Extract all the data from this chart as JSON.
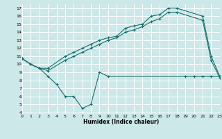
{
  "xlabel": "Humidex (Indice chaleur)",
  "bg_color": "#cce8e8",
  "grid_color": "#ffffff",
  "line_color": "#1a6e6e",
  "line1_x": [
    0,
    1,
    2,
    3,
    5,
    6,
    7,
    8,
    9,
    10,
    11,
    12,
    13,
    14,
    15,
    16,
    17,
    18,
    21,
    22,
    23
  ],
  "line1_y": [
    10.7,
    10.0,
    9.5,
    9.5,
    11.0,
    11.5,
    12.0,
    12.5,
    13.0,
    13.3,
    13.5,
    14.5,
    14.8,
    15.0,
    16.0,
    16.2,
    17.0,
    17.0,
    16.0,
    11.0,
    8.5
  ],
  "line2_x": [
    0,
    1,
    2,
    3,
    5,
    6,
    7,
    8,
    9,
    10,
    11,
    12,
    13,
    14,
    15,
    16,
    17,
    18,
    21,
    22,
    23
  ],
  "line2_y": [
    10.7,
    10.0,
    9.5,
    9.2,
    10.5,
    11.0,
    11.5,
    12.0,
    12.5,
    13.0,
    13.3,
    14.0,
    14.3,
    14.7,
    15.3,
    15.7,
    16.5,
    16.5,
    15.5,
    10.5,
    8.3
  ],
  "line3_x": [
    0,
    1,
    2,
    3,
    4,
    5,
    6,
    7,
    8,
    9,
    10,
    19,
    20,
    21,
    22,
    23
  ],
  "line3_y": [
    10.7,
    10.0,
    9.5,
    8.5,
    7.5,
    6.0,
    6.0,
    4.5,
    5.0,
    9.0,
    8.5,
    8.5,
    8.5,
    8.5,
    8.5,
    8.5
  ],
  "xlim": [
    0,
    23
  ],
  "ylim": [
    3.8,
    17.5
  ],
  "yticks": [
    4,
    5,
    6,
    7,
    8,
    9,
    10,
    11,
    12,
    13,
    14,
    15,
    16,
    17
  ],
  "xticks": [
    0,
    1,
    2,
    3,
    4,
    5,
    6,
    7,
    8,
    9,
    10,
    11,
    12,
    13,
    14,
    15,
    16,
    17,
    18,
    19,
    20,
    21,
    22,
    23
  ]
}
